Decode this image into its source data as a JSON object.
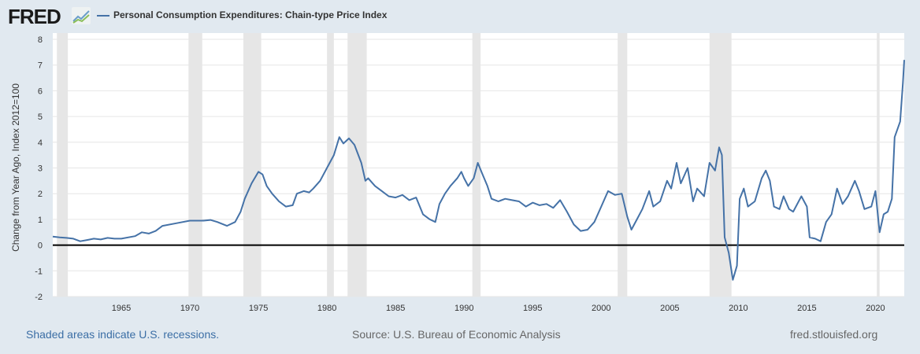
{
  "header": {
    "logo": "FRED",
    "series_title": "Personal Consumption Expenditures: Chain-type Price Index"
  },
  "footer": {
    "recession_note": "Shaded areas indicate U.S. recessions.",
    "source": "Source: U.S. Bureau of Economic Analysis",
    "site": "fred.stlouisfed.org"
  },
  "colors": {
    "line": "#4572a7",
    "recession": "#e6e6e6",
    "zero_line": "#000000"
  },
  "chart_data": {
    "type": "line",
    "title": "Personal Consumption Expenditures: Chain-type Price Index",
    "ylabel": "Change from Year Ago, Index 2012=100",
    "xlabel": "",
    "xlim": [
      1960,
      2022.1
    ],
    "ylim": [
      -2,
      8
    ],
    "yticks": [
      -2,
      -1,
      0,
      1,
      2,
      3,
      4,
      5,
      6,
      7,
      8
    ],
    "xticks": [
      1965,
      1970,
      1975,
      1980,
      1985,
      1990,
      1995,
      2000,
      2005,
      2010,
      2015,
      2020
    ],
    "grid": true,
    "recessions": [
      [
        1960.3,
        1961.1
      ],
      [
        1969.9,
        1970.9
      ],
      [
        1973.9,
        1975.2
      ],
      [
        1980.0,
        1980.5
      ],
      [
        1981.5,
        1982.9
      ],
      [
        1990.6,
        1991.2
      ],
      [
        2001.2,
        2001.9
      ],
      [
        2007.9,
        2009.5
      ],
      [
        2020.1,
        2020.3
      ]
    ],
    "series": [
      {
        "name": "Personal Consumption Expenditures: Chain-type Price Index",
        "points": [
          [
            1960,
            0.33
          ],
          [
            1960.5,
            0.3
          ],
          [
            1961,
            0.28
          ],
          [
            1961.5,
            0.25
          ],
          [
            1962,
            0.15
          ],
          [
            1962.5,
            0.2
          ],
          [
            1963,
            0.25
          ],
          [
            1963.5,
            0.22
          ],
          [
            1964,
            0.28
          ],
          [
            1964.5,
            0.25
          ],
          [
            1965,
            0.25
          ],
          [
            1966,
            0.35
          ],
          [
            1966.5,
            0.5
          ],
          [
            1967,
            0.45
          ],
          [
            1967.5,
            0.55
          ],
          [
            1968,
            0.75
          ],
          [
            1969,
            0.85
          ],
          [
            1970,
            0.95
          ],
          [
            1970.5,
            0.95
          ],
          [
            1971,
            0.95
          ],
          [
            1971.5,
            0.98
          ],
          [
            1972,
            0.9
          ],
          [
            1972.7,
            0.75
          ],
          [
            1973.3,
            0.9
          ],
          [
            1973.7,
            1.3
          ],
          [
            1974,
            1.8
          ],
          [
            1974.5,
            2.4
          ],
          [
            1975,
            2.85
          ],
          [
            1975.3,
            2.75
          ],
          [
            1975.6,
            2.3
          ],
          [
            1976,
            2.0
          ],
          [
            1976.5,
            1.7
          ],
          [
            1977,
            1.5
          ],
          [
            1977.5,
            1.55
          ],
          [
            1977.8,
            2.0
          ],
          [
            1978.3,
            2.1
          ],
          [
            1978.7,
            2.05
          ],
          [
            1979,
            2.2
          ],
          [
            1979.5,
            2.5
          ],
          [
            1980,
            3.0
          ],
          [
            1980.5,
            3.5
          ],
          [
            1980.9,
            4.2
          ],
          [
            1981.2,
            3.95
          ],
          [
            1981.6,
            4.15
          ],
          [
            1982,
            3.9
          ],
          [
            1982.5,
            3.2
          ],
          [
            1982.8,
            2.5
          ],
          [
            1983,
            2.6
          ],
          [
            1983.5,
            2.3
          ],
          [
            1984,
            2.1
          ],
          [
            1984.5,
            1.9
          ],
          [
            1985,
            1.85
          ],
          [
            1985.5,
            1.95
          ],
          [
            1986,
            1.75
          ],
          [
            1986.5,
            1.85
          ],
          [
            1987,
            1.2
          ],
          [
            1987.5,
            1.0
          ],
          [
            1987.9,
            0.9
          ],
          [
            1988.2,
            1.6
          ],
          [
            1988.6,
            2.0
          ],
          [
            1989,
            2.3
          ],
          [
            1989.5,
            2.6
          ],
          [
            1989.8,
            2.85
          ],
          [
            1990,
            2.6
          ],
          [
            1990.3,
            2.3
          ],
          [
            1990.7,
            2.6
          ],
          [
            1991,
            3.2
          ],
          [
            1991.3,
            2.8
          ],
          [
            1991.7,
            2.3
          ],
          [
            1992,
            1.8
          ],
          [
            1992.5,
            1.7
          ],
          [
            1993,
            1.8
          ],
          [
            1993.5,
            1.75
          ],
          [
            1994,
            1.7
          ],
          [
            1994.5,
            1.5
          ],
          [
            1995,
            1.65
          ],
          [
            1995.5,
            1.55
          ],
          [
            1996,
            1.6
          ],
          [
            1996.5,
            1.45
          ],
          [
            1997,
            1.75
          ],
          [
            1997.5,
            1.3
          ],
          [
            1998,
            0.8
          ],
          [
            1998.5,
            0.55
          ],
          [
            1999,
            0.6
          ],
          [
            1999.5,
            0.9
          ],
          [
            2000,
            1.5
          ],
          [
            2000.5,
            2.1
          ],
          [
            2001,
            1.95
          ],
          [
            2001.5,
            2.0
          ],
          [
            2001.9,
            1.1
          ],
          [
            2002.2,
            0.6
          ],
          [
            2002.6,
            1.0
          ],
          [
            2003,
            1.4
          ],
          [
            2003.5,
            2.1
          ],
          [
            2003.8,
            1.5
          ],
          [
            2004.3,
            1.7
          ],
          [
            2004.8,
            2.5
          ],
          [
            2005.1,
            2.2
          ],
          [
            2005.5,
            3.2
          ],
          [
            2005.8,
            2.4
          ],
          [
            2006.3,
            3.0
          ],
          [
            2006.7,
            1.7
          ],
          [
            2007,
            2.2
          ],
          [
            2007.5,
            1.9
          ],
          [
            2007.9,
            3.2
          ],
          [
            2008.3,
            2.9
          ],
          [
            2008.6,
            3.8
          ],
          [
            2008.8,
            3.5
          ],
          [
            2009.0,
            0.3
          ],
          [
            2009.3,
            -0.3
          ],
          [
            2009.6,
            -1.35
          ],
          [
            2009.9,
            -0.8
          ],
          [
            2010.1,
            1.8
          ],
          [
            2010.4,
            2.2
          ],
          [
            2010.7,
            1.5
          ],
          [
            2011.2,
            1.7
          ],
          [
            2011.7,
            2.6
          ],
          [
            2012.0,
            2.9
          ],
          [
            2012.3,
            2.5
          ],
          [
            2012.6,
            1.5
          ],
          [
            2013,
            1.4
          ],
          [
            2013.3,
            1.9
          ],
          [
            2013.7,
            1.4
          ],
          [
            2014,
            1.3
          ],
          [
            2014.6,
            1.9
          ],
          [
            2015,
            1.5
          ],
          [
            2015.2,
            0.3
          ],
          [
            2015.6,
            0.25
          ],
          [
            2016,
            0.15
          ],
          [
            2016.4,
            0.9
          ],
          [
            2016.8,
            1.2
          ],
          [
            2017.2,
            2.2
          ],
          [
            2017.6,
            1.6
          ],
          [
            2018,
            1.9
          ],
          [
            2018.5,
            2.5
          ],
          [
            2018.8,
            2.1
          ],
          [
            2019.2,
            1.4
          ],
          [
            2019.7,
            1.5
          ],
          [
            2020,
            2.1
          ],
          [
            2020.3,
            0.5
          ],
          [
            2020.6,
            1.2
          ],
          [
            2020.9,
            1.3
          ],
          [
            2021.2,
            1.8
          ],
          [
            2021.4,
            4.2
          ],
          [
            2021.8,
            4.8
          ],
          [
            2022.0,
            6.3
          ],
          [
            2022.1,
            7.2
          ]
        ]
      }
    ]
  }
}
